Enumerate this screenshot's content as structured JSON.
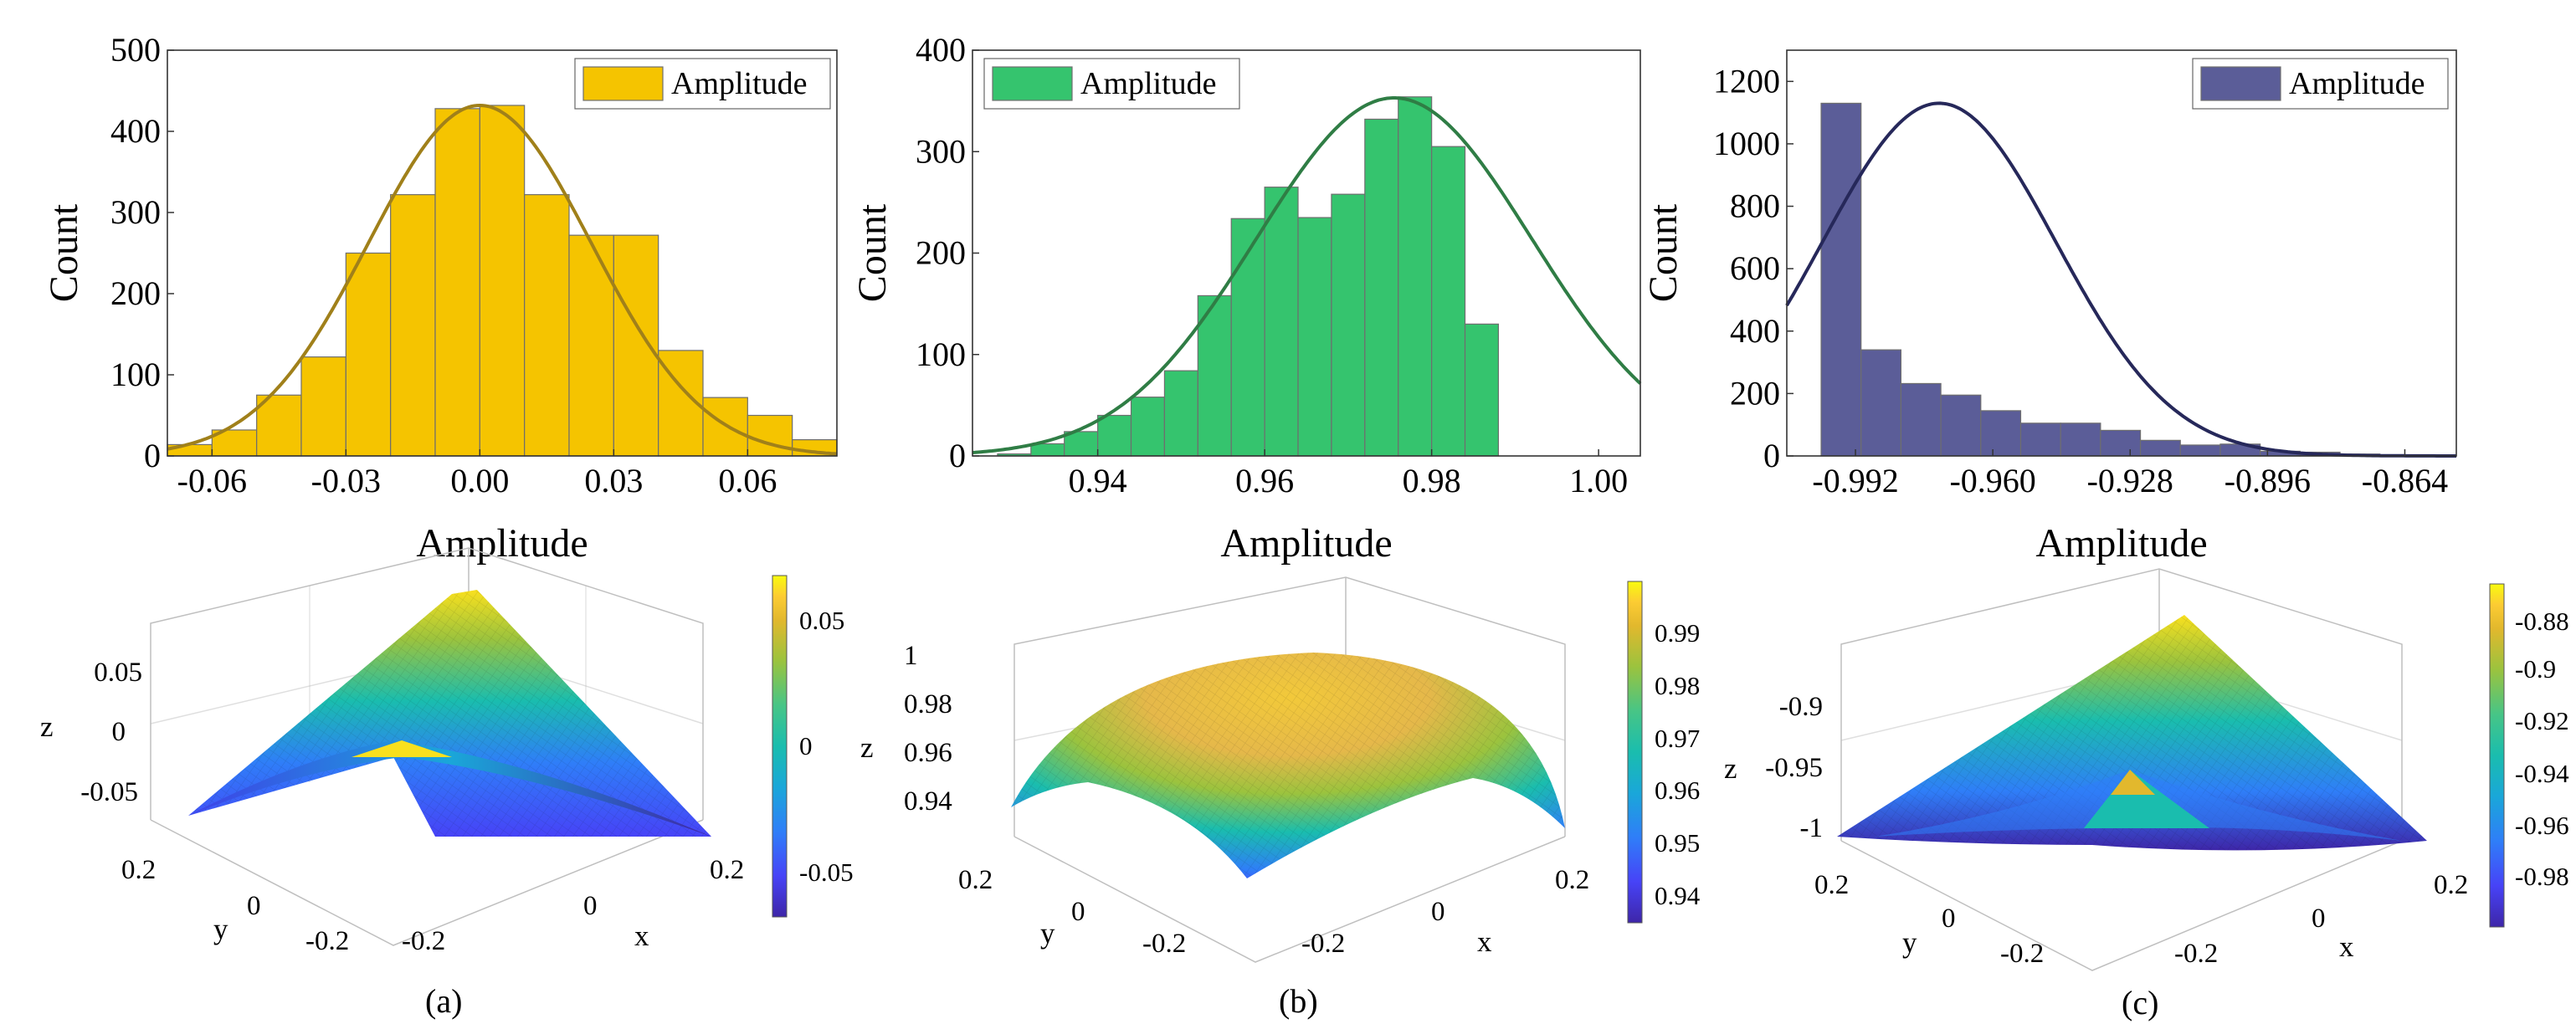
{
  "chart_data": [
    {
      "type": "bar",
      "panel": "a-top",
      "subtype": "histogram",
      "color": "#F5C400",
      "fit_color": "#A0801A",
      "legend": "Amplitude",
      "legend_position": "top-right",
      "xlabel": "Amplitude",
      "ylabel": "Count",
      "xlim": [
        -0.07,
        0.08
      ],
      "ylim": [
        0,
        500
      ],
      "xticks": [
        -0.06,
        -0.03,
        0.0,
        0.03,
        0.06
      ],
      "xtick_labels": [
        "-0.06",
        "-0.03",
        "0.00",
        "0.03",
        "0.06"
      ],
      "yticks": [
        0,
        100,
        200,
        300,
        400,
        500
      ],
      "ytick_labels": [
        "0",
        "100",
        "200",
        "300",
        "400",
        "500"
      ],
      "bin_start": -0.07,
      "bin_width": 0.01,
      "values": [
        14,
        32,
        75,
        122,
        250,
        322,
        428,
        432,
        322,
        272,
        272,
        130,
        72,
        50,
        20
      ],
      "fit": {
        "peak": 432,
        "mean": 0.0,
        "sd": 0.025
      }
    },
    {
      "type": "bar",
      "panel": "b-top",
      "subtype": "histogram",
      "color": "#35C46E",
      "fit_color": "#2F7D45",
      "legend": "Amplitude",
      "legend_position": "top-left",
      "xlabel": "Amplitude",
      "ylabel": "Count",
      "xlim": [
        0.925,
        1.005
      ],
      "ylim": [
        0,
        400
      ],
      "xticks": [
        0.94,
        0.96,
        0.98,
        1.0
      ],
      "xtick_labels": [
        "0.94",
        "0.96",
        "0.98",
        "1.00"
      ],
      "yticks": [
        0,
        100,
        200,
        300,
        400
      ],
      "ytick_labels": [
        "0",
        "100",
        "200",
        "300",
        "400"
      ],
      "bin_start": 0.928,
      "bin_width": 0.004,
      "values": [
        2,
        12,
        24,
        40,
        58,
        84,
        158,
        234,
        265,
        235,
        258,
        332,
        354,
        305,
        130
      ],
      "fit": {
        "peak": 353,
        "mean": 0.9755,
        "sd": 0.0165
      }
    },
    {
      "type": "bar",
      "panel": "c-top",
      "subtype": "histogram",
      "color": "#5B5D98",
      "fit_color": "#26285A",
      "legend": "Amplitude",
      "legend_position": "top-right",
      "xlabel": "Amplitude",
      "ylabel": "Count",
      "xlim": [
        -1.008,
        -0.852
      ],
      "ylim": [
        0,
        1300
      ],
      "xticks": [
        -0.992,
        -0.96,
        -0.928,
        -0.896,
        -0.864
      ],
      "xtick_labels": [
        "-0.992",
        "-0.960",
        "-0.928",
        "-0.896",
        "-0.864"
      ],
      "yticks": [
        0,
        200,
        400,
        600,
        800,
        1000,
        1200
      ],
      "ytick_labels": [
        "0",
        "200",
        "400",
        "600",
        "800",
        "1000",
        "1200"
      ],
      "bin_start": -1.0,
      "bin_width": 0.0093,
      "values": [
        1130,
        340,
        232,
        195,
        145,
        105,
        105,
        82,
        50,
        35,
        38,
        15,
        12,
        6
      ],
      "fit": {
        "peak": 1130,
        "mean": -0.9725,
        "sd": 0.0272
      }
    },
    {
      "type": "surface",
      "panel": "a-bottom",
      "shape": "saddle",
      "xlabel": "x",
      "ylabel": "y",
      "zlabel": "z",
      "xtick_labels": [
        "-0.2",
        "0",
        "0.2"
      ],
      "ytick_labels": [
        "0.2",
        "0",
        "-0.2"
      ],
      "ztick_labels": [
        "0.05",
        "0",
        "-0.05"
      ],
      "colorbar_ticks": [
        "0.05",
        "0",
        "-0.05"
      ],
      "colorbar_range": [
        -0.065,
        0.065
      ],
      "caption": "(a)"
    },
    {
      "type": "surface",
      "panel": "b-bottom",
      "shape": "dome",
      "xlabel": "x",
      "ylabel": "y",
      "zlabel": "z",
      "xtick_labels": [
        "-0.2",
        "0",
        "0.2"
      ],
      "ytick_labels": [
        "0.2",
        "0",
        "-0.2"
      ],
      "ztick_labels": [
        "1",
        "0.98",
        "0.96",
        "0.94"
      ],
      "colorbar_ticks": [
        "0.99",
        "0.98",
        "0.97",
        "0.96",
        "0.95",
        "0.94"
      ],
      "colorbar_range": [
        0.935,
        1.0
      ],
      "caption": "(b)"
    },
    {
      "type": "surface",
      "panel": "c-bottom",
      "shape": "bowl",
      "xlabel": "x",
      "ylabel": "y",
      "zlabel": "z",
      "xtick_labels": [
        "-0.2",
        "0",
        "0.2"
      ],
      "ytick_labels": [
        "0.2",
        "0",
        "-0.2"
      ],
      "ztick_labels": [
        "-0.9",
        "-0.95",
        "-1"
      ],
      "colorbar_ticks": [
        "-0.88",
        "-0.9",
        "-0.92",
        "-0.94",
        "-0.96",
        "-0.98"
      ],
      "colorbar_range": [
        -0.995,
        -0.87
      ],
      "caption": "(c)"
    }
  ],
  "colormap": [
    "#3E26A8",
    "#4743F7",
    "#2F7EF8",
    "#1AA7D9",
    "#1ABDAE",
    "#47C586",
    "#9BC33E",
    "#E2B82D",
    "#FCCC33",
    "#F9FB0E"
  ]
}
